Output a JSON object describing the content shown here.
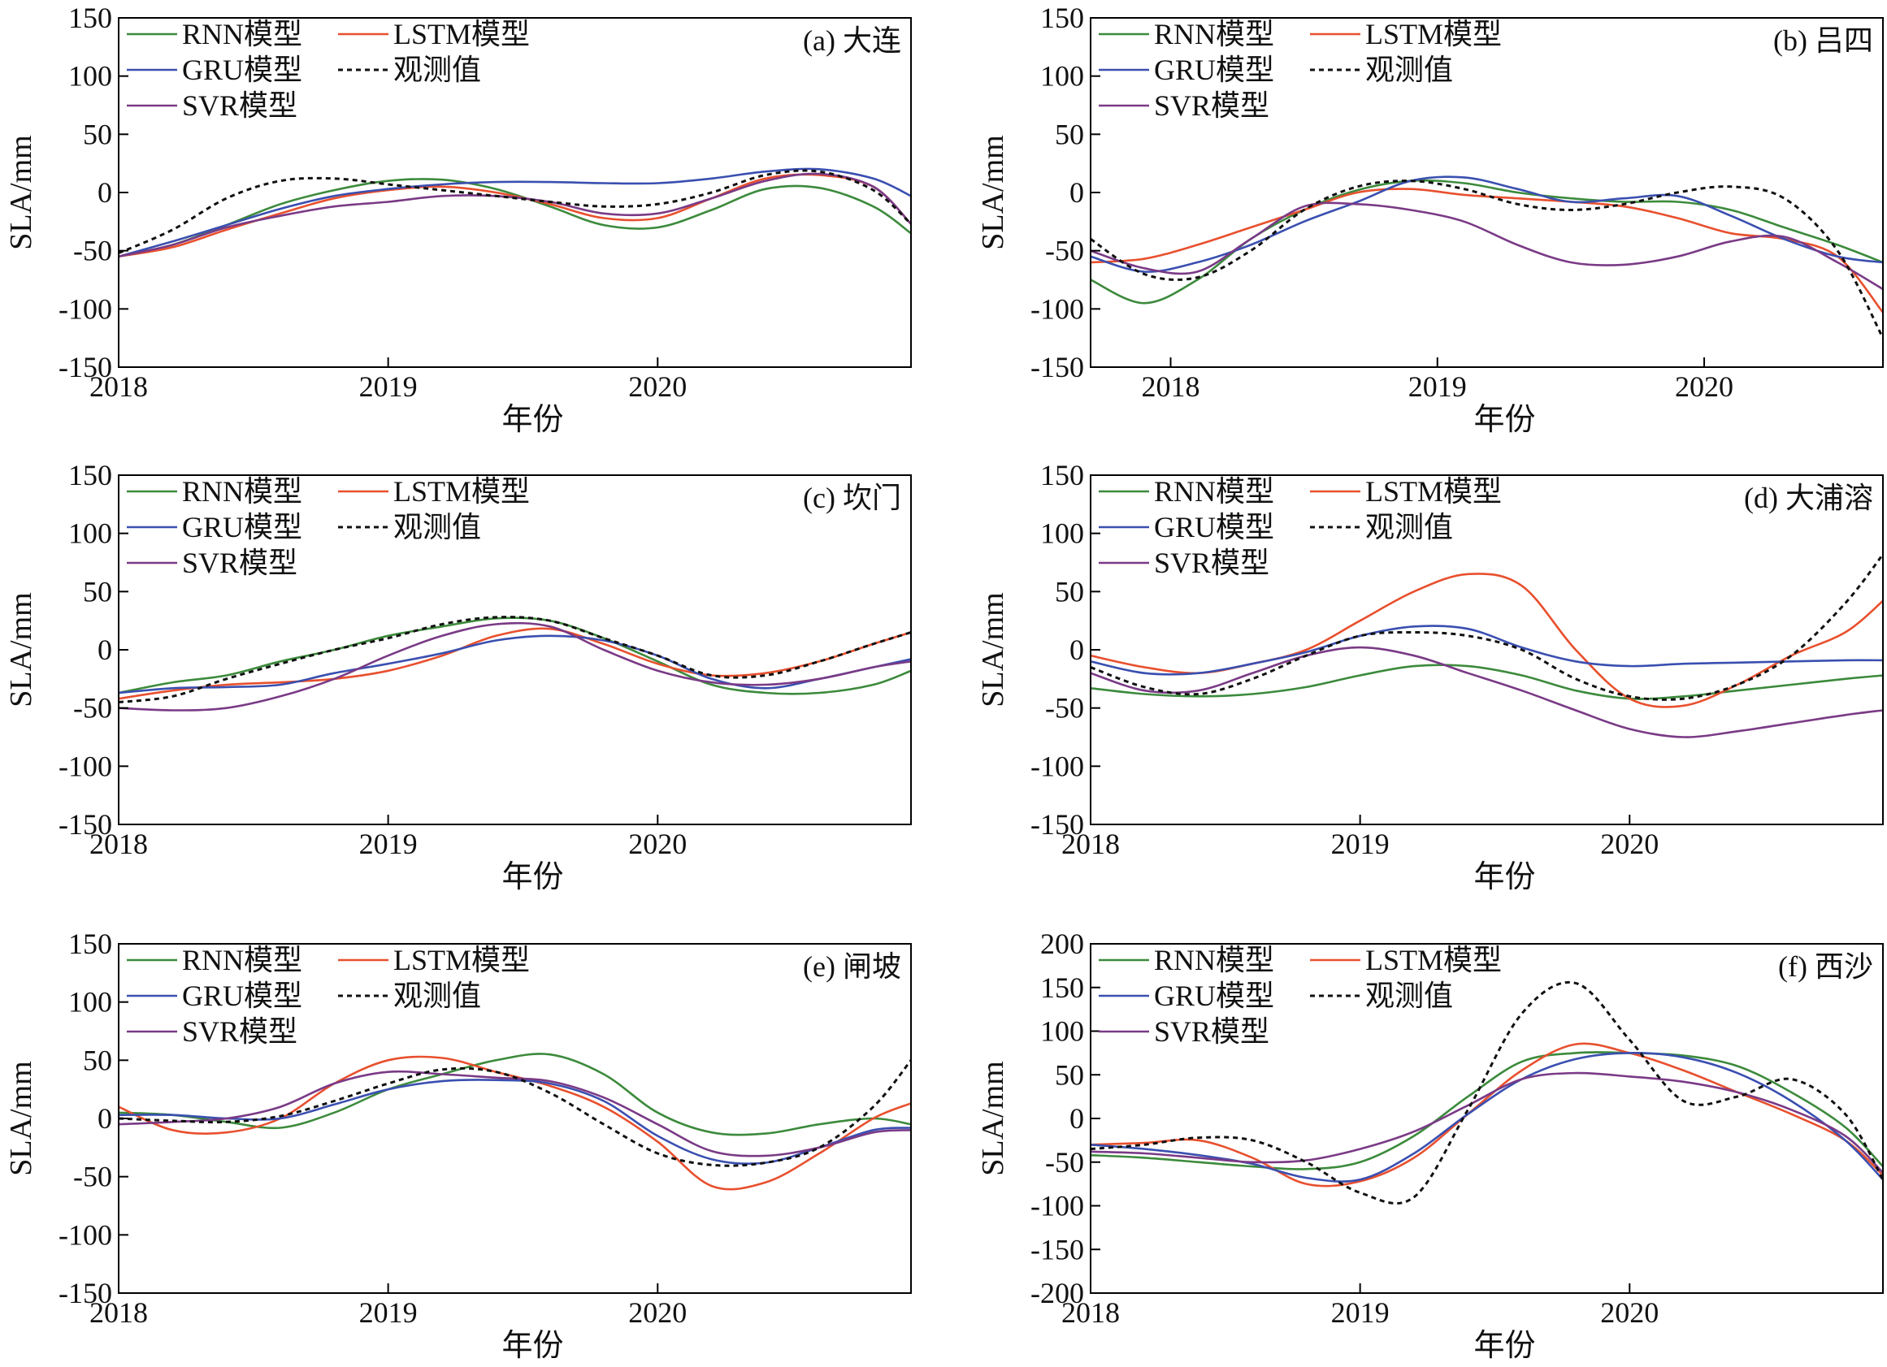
{
  "figure": {
    "background": "#ffffff",
    "axis_color": "#000000"
  },
  "series_styles": [
    {
      "key": "rnn",
      "name": "RNN模型",
      "color": "#3c8a3c",
      "dash": ""
    },
    {
      "key": "lstm",
      "name": "LSTM模型",
      "color": "#e8502e",
      "dash": ""
    },
    {
      "key": "gru",
      "name": "GRU模型",
      "color": "#3a4fb0",
      "dash": ""
    },
    {
      "key": "obs",
      "name": "观测值",
      "color": "#111111",
      "dash": "dashed"
    },
    {
      "key": "svr",
      "name": "SVR模型",
      "color": "#7a3a86",
      "dash": ""
    }
  ],
  "chart_data": [
    {
      "type": "line",
      "title": "(a) 大连",
      "xlabel": "年份",
      "ylabel": "SLA/mm",
      "xlim": [
        2018.0,
        2020.94
      ],
      "ylim": [
        -150,
        150
      ],
      "xticks": [
        2018,
        2019,
        2020
      ],
      "yticks": [
        -150,
        -100,
        -50,
        0,
        50,
        100,
        150
      ],
      "legend": "top-left",
      "x": [
        2018.0,
        2018.2,
        2018.4,
        2018.6,
        2018.8,
        2019.0,
        2019.2,
        2019.4,
        2019.6,
        2019.8,
        2020.0,
        2020.2,
        2020.4,
        2020.6,
        2020.8,
        2020.94
      ],
      "series": [
        {
          "name": "RNN模型",
          "values": [
            -55,
            -45,
            -28,
            -10,
            2,
            10,
            11,
            3,
            -12,
            -28,
            -30,
            -15,
            3,
            4,
            -12,
            -35
          ]
        },
        {
          "name": "LSTM模型",
          "values": [
            -55,
            -47,
            -32,
            -18,
            -5,
            2,
            5,
            0,
            -10,
            -22,
            -22,
            -5,
            12,
            15,
            5,
            -27
          ]
        },
        {
          "name": "GRU模型",
          "values": [
            -55,
            -42,
            -28,
            -14,
            -3,
            3,
            7,
            9,
            9,
            8,
            8,
            12,
            18,
            20,
            12,
            -3
          ]
        },
        {
          "name": "观测值",
          "values": [
            -52,
            -32,
            -5,
            10,
            12,
            7,
            2,
            -3,
            -8,
            -12,
            -10,
            0,
            15,
            18,
            2,
            -27
          ]
        },
        {
          "name": "SVR模型",
          "values": [
            -55,
            -45,
            -30,
            -20,
            -12,
            -8,
            -3,
            -3,
            -8,
            -18,
            -18,
            -5,
            10,
            16,
            5,
            -27
          ]
        }
      ]
    },
    {
      "type": "line",
      "title": "(b) 吕四",
      "xlabel": "年份",
      "ylabel": "SLA/mm",
      "xlim": [
        2017.7,
        2020.67
      ],
      "ylim": [
        -150,
        150
      ],
      "xticks": [
        2018,
        2019,
        2020
      ],
      "yticks": [
        -150,
        -100,
        -50,
        0,
        50,
        100,
        150
      ],
      "legend": "top-left",
      "x": [
        2017.7,
        2017.9,
        2018.1,
        2018.3,
        2018.5,
        2018.7,
        2018.9,
        2019.1,
        2019.3,
        2019.5,
        2019.7,
        2019.9,
        2020.1,
        2020.3,
        2020.5,
        2020.67
      ],
      "series": [
        {
          "name": "RNN模型",
          "values": [
            -75,
            -95,
            -75,
            -40,
            -15,
            2,
            10,
            8,
            0,
            -5,
            -8,
            -8,
            -15,
            -30,
            -45,
            -60
          ]
        },
        {
          "name": "LSTM模型",
          "values": [
            -60,
            -57,
            -45,
            -30,
            -15,
            0,
            3,
            -2,
            -5,
            -8,
            -12,
            -22,
            -35,
            -40,
            -55,
            -103
          ]
        },
        {
          "name": "GRU模型",
          "values": [
            -55,
            -68,
            -60,
            -45,
            -25,
            -8,
            10,
            13,
            3,
            -8,
            -5,
            -3,
            -20,
            -40,
            -55,
            -60
          ]
        },
        {
          "name": "观测值",
          "values": [
            -40,
            -70,
            -73,
            -50,
            -15,
            5,
            10,
            3,
            -10,
            -15,
            -10,
            0,
            5,
            -5,
            -50,
            -125
          ]
        },
        {
          "name": "SVR模型",
          "values": [
            -50,
            -65,
            -68,
            -40,
            -12,
            -10,
            -15,
            -25,
            -45,
            -60,
            -62,
            -55,
            -42,
            -38,
            -60,
            -83
          ]
        }
      ]
    },
    {
      "type": "line",
      "title": "(c) 坎门",
      "xlabel": "年份",
      "ylabel": "SLA/mm",
      "xlim": [
        2018.0,
        2020.94
      ],
      "ylim": [
        -150,
        150
      ],
      "xticks": [
        2018,
        2019,
        2020
      ],
      "yticks": [
        -150,
        -100,
        -50,
        0,
        50,
        100,
        150
      ],
      "legend": "top-left",
      "x": [
        2018.0,
        2018.2,
        2018.4,
        2018.6,
        2018.8,
        2019.0,
        2019.2,
        2019.4,
        2019.6,
        2019.8,
        2020.0,
        2020.2,
        2020.4,
        2020.6,
        2020.8,
        2020.94
      ],
      "series": [
        {
          "name": "RNN模型",
          "values": [
            -37,
            -28,
            -22,
            -10,
            0,
            12,
            20,
            27,
            25,
            10,
            -10,
            -30,
            -37,
            -37,
            -30,
            -18
          ]
        },
        {
          "name": "LSTM模型",
          "values": [
            -42,
            -35,
            -30,
            -28,
            -25,
            -18,
            -5,
            12,
            18,
            5,
            -12,
            -22,
            -20,
            -10,
            5,
            15
          ]
        },
        {
          "name": "GRU模型",
          "values": [
            -37,
            -33,
            -32,
            -30,
            -20,
            -12,
            -3,
            8,
            12,
            8,
            -5,
            -25,
            -33,
            -25,
            -15,
            -8
          ]
        },
        {
          "name": "观测值",
          "values": [
            -45,
            -40,
            -25,
            -12,
            0,
            10,
            22,
            28,
            25,
            10,
            -5,
            -22,
            -22,
            -10,
            5,
            15
          ]
        },
        {
          "name": "SVR模型",
          "values": [
            -50,
            -52,
            -50,
            -40,
            -25,
            -5,
            12,
            22,
            20,
            0,
            -18,
            -28,
            -30,
            -25,
            -15,
            -10
          ]
        }
      ]
    },
    {
      "type": "line",
      "title": "(d) 大浦溶",
      "xlabel": "年份",
      "ylabel": "SLA/mm",
      "xlim": [
        2018.0,
        2020.94
      ],
      "ylim": [
        -150,
        150
      ],
      "xticks": [
        2018,
        2019,
        2020
      ],
      "yticks": [
        -150,
        -100,
        -50,
        0,
        50,
        100,
        150
      ],
      "legend": "top-left",
      "x": [
        2018.0,
        2018.2,
        2018.4,
        2018.6,
        2018.8,
        2019.0,
        2019.2,
        2019.4,
        2019.6,
        2019.8,
        2020.0,
        2020.2,
        2020.4,
        2020.6,
        2020.8,
        2020.94
      ],
      "series": [
        {
          "name": "RNN模型",
          "values": [
            -33,
            -38,
            -40,
            -38,
            -32,
            -22,
            -14,
            -14,
            -22,
            -35,
            -42,
            -40,
            -35,
            -30,
            -25,
            -22
          ]
        },
        {
          "name": "LSTM模型",
          "values": [
            -5,
            -15,
            -20,
            -12,
            0,
            25,
            50,
            65,
            55,
            0,
            -42,
            -48,
            -30,
            -5,
            15,
            42
          ]
        },
        {
          "name": "GRU模型",
          "values": [
            -10,
            -20,
            -20,
            -12,
            -2,
            12,
            20,
            18,
            2,
            -10,
            -14,
            -12,
            -11,
            -10,
            -9,
            -9
          ]
        },
        {
          "name": "观测值",
          "values": [
            -15,
            -32,
            -38,
            -25,
            -5,
            12,
            15,
            12,
            0,
            -25,
            -40,
            -42,
            -30,
            -5,
            40,
            82
          ]
        },
        {
          "name": "SVR模型",
          "values": [
            -20,
            -35,
            -35,
            -20,
            -5,
            2,
            -5,
            -20,
            -35,
            -52,
            -68,
            -75,
            -70,
            -63,
            -56,
            -52
          ]
        }
      ]
    },
    {
      "type": "line",
      "title": "(e) 闸坡",
      "xlabel": "年份",
      "ylabel": "SLA/mm",
      "xlim": [
        2018.0,
        2020.94
      ],
      "ylim": [
        -150,
        150
      ],
      "xticks": [
        2018,
        2019,
        2020
      ],
      "yticks": [
        -150,
        -100,
        -50,
        0,
        50,
        100,
        150
      ],
      "legend": "top-left",
      "x": [
        2018.0,
        2018.2,
        2018.4,
        2018.6,
        2018.8,
        2019.0,
        2019.2,
        2019.4,
        2019.6,
        2019.8,
        2020.0,
        2020.2,
        2020.4,
        2020.6,
        2020.8,
        2020.94
      ],
      "series": [
        {
          "name": "RNN模型",
          "values": [
            5,
            3,
            -3,
            -8,
            5,
            25,
            38,
            50,
            55,
            38,
            5,
            -12,
            -13,
            -5,
            0,
            -5
          ]
        },
        {
          "name": "LSTM模型",
          "values": [
            10,
            -10,
            -12,
            0,
            30,
            50,
            52,
            40,
            28,
            10,
            -20,
            -58,
            -55,
            -30,
            0,
            13
          ]
        },
        {
          "name": "GRU模型",
          "values": [
            3,
            3,
            0,
            0,
            12,
            25,
            32,
            33,
            30,
            15,
            -15,
            -35,
            -38,
            -25,
            -10,
            -8
          ]
        },
        {
          "name": "观测值",
          "values": [
            0,
            -2,
            -3,
            2,
            15,
            30,
            42,
            40,
            22,
            -5,
            -30,
            -40,
            -38,
            -25,
            10,
            50
          ]
        },
        {
          "name": "SVR模型",
          "values": [
            -5,
            -3,
            0,
            10,
            30,
            40,
            38,
            35,
            32,
            18,
            -5,
            -28,
            -32,
            -25,
            -12,
            -10
          ]
        }
      ]
    },
    {
      "type": "line",
      "title": "(f) 西沙",
      "xlabel": "年份",
      "ylabel": "SLA/mm",
      "xlim": [
        2018.0,
        2020.94
      ],
      "ylim": [
        -200,
        200
      ],
      "xticks": [
        2018,
        2019,
        2020
      ],
      "yticks": [
        -200,
        -150,
        -100,
        -50,
        0,
        50,
        100,
        150,
        200
      ],
      "legend": "top-left",
      "x": [
        2018.0,
        2018.2,
        2018.4,
        2018.6,
        2018.8,
        2019.0,
        2019.2,
        2019.4,
        2019.6,
        2019.8,
        2020.0,
        2020.2,
        2020.4,
        2020.6,
        2020.8,
        2020.94
      ],
      "series": [
        {
          "name": "RNN模型",
          "values": [
            -42,
            -45,
            -50,
            -55,
            -58,
            -50,
            -20,
            25,
            65,
            75,
            75,
            72,
            60,
            30,
            -10,
            -55
          ]
        },
        {
          "name": "LSTM模型",
          "values": [
            -30,
            -28,
            -25,
            -45,
            -75,
            -72,
            -45,
            5,
            55,
            85,
            75,
            55,
            30,
            5,
            -25,
            -65
          ]
        },
        {
          "name": "GRU模型",
          "values": [
            -30,
            -35,
            -42,
            -52,
            -68,
            -70,
            -40,
            5,
            45,
            68,
            75,
            70,
            52,
            20,
            -25,
            -70
          ]
        },
        {
          "name": "观测值",
          "values": [
            -35,
            -30,
            -22,
            -25,
            -50,
            -85,
            -90,
            10,
            120,
            155,
            90,
            20,
            25,
            45,
            5,
            -70
          ]
        },
        {
          "name": "SVR模型",
          "values": [
            -38,
            -40,
            -45,
            -50,
            -48,
            -35,
            -15,
            15,
            45,
            52,
            48,
            42,
            30,
            10,
            -20,
            -62
          ]
        }
      ]
    }
  ]
}
